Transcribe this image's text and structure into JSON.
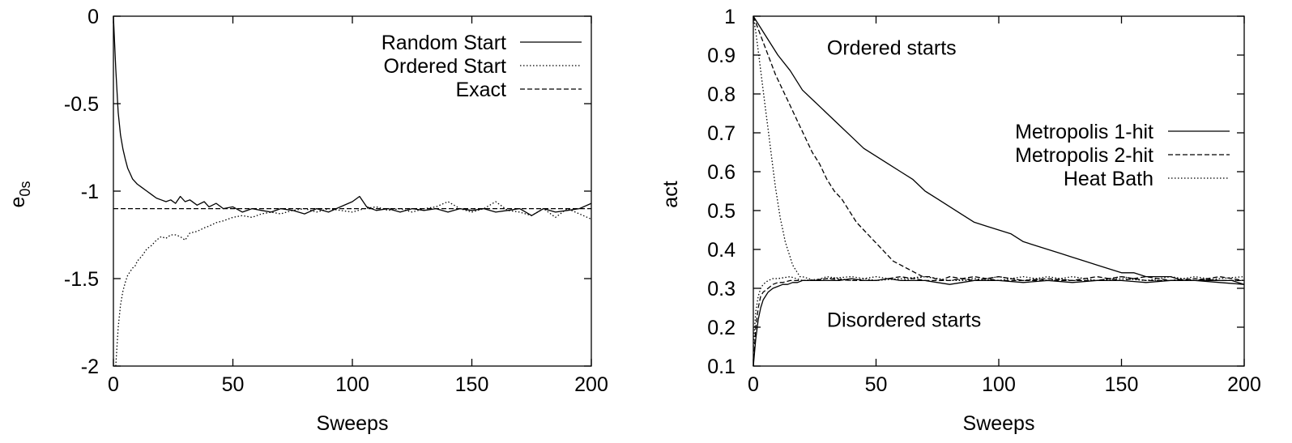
{
  "chart_data": [
    {
      "type": "line",
      "title": "",
      "xlabel": "Sweeps",
      "ylabel": "e",
      "ylabel_sub": "0s",
      "xlim": [
        0,
        200
      ],
      "ylim": [
        -2,
        0
      ],
      "xticks": [
        0,
        50,
        100,
        150,
        200
      ],
      "yticks": [
        -2,
        -1.5,
        -1,
        -0.5,
        0
      ],
      "ytick_labels": [
        "-2",
        "-1.5",
        "-1",
        "-0.5",
        "0"
      ],
      "grid": false,
      "legend": "top-right",
      "annotations": [],
      "series": [
        {
          "name": "Random  Start",
          "style": "solid",
          "x": [
            0,
            1,
            2,
            3,
            4,
            5,
            6,
            7,
            8,
            10,
            12,
            14,
            16,
            18,
            20,
            22,
            24,
            26,
            28,
            30,
            32,
            35,
            38,
            40,
            43,
            46,
            50,
            54,
            58,
            62,
            66,
            70,
            75,
            80,
            85,
            90,
            95,
            100,
            103,
            106,
            110,
            115,
            120,
            125,
            130,
            135,
            140,
            145,
            150,
            155,
            160,
            165,
            170,
            175,
            180,
            185,
            190,
            195,
            200
          ],
          "y": [
            0,
            -0.3,
            -0.55,
            -0.68,
            -0.76,
            -0.82,
            -0.87,
            -0.9,
            -0.93,
            -0.96,
            -0.98,
            -1.0,
            -1.02,
            -1.04,
            -1.05,
            -1.06,
            -1.05,
            -1.07,
            -1.03,
            -1.06,
            -1.05,
            -1.08,
            -1.06,
            -1.09,
            -1.07,
            -1.1,
            -1.09,
            -1.12,
            -1.1,
            -1.11,
            -1.12,
            -1.1,
            -1.11,
            -1.13,
            -1.1,
            -1.12,
            -1.09,
            -1.06,
            -1.03,
            -1.09,
            -1.11,
            -1.1,
            -1.12,
            -1.1,
            -1.11,
            -1.1,
            -1.12,
            -1.1,
            -1.11,
            -1.1,
            -1.12,
            -1.11,
            -1.1,
            -1.14,
            -1.1,
            -1.12,
            -1.11,
            -1.1,
            -1.07
          ]
        },
        {
          "name": "Ordered Start",
          "style": "dotted",
          "x": [
            1,
            2,
            3,
            4,
            5,
            6,
            7,
            8,
            9,
            10,
            12,
            14,
            16,
            18,
            20,
            22,
            24,
            26,
            28,
            30,
            32,
            35,
            38,
            40,
            43,
            46,
            50,
            54,
            58,
            62,
            66,
            70,
            75,
            80,
            85,
            90,
            95,
            100,
            105,
            110,
            115,
            120,
            125,
            130,
            135,
            140,
            145,
            150,
            155,
            160,
            165,
            170,
            175,
            180,
            185,
            190,
            195,
            200
          ],
          "y": [
            -2,
            -1.78,
            -1.65,
            -1.57,
            -1.52,
            -1.48,
            -1.46,
            -1.44,
            -1.43,
            -1.4,
            -1.37,
            -1.33,
            -1.31,
            -1.28,
            -1.26,
            -1.27,
            -1.25,
            -1.25,
            -1.26,
            -1.28,
            -1.24,
            -1.23,
            -1.21,
            -1.2,
            -1.18,
            -1.17,
            -1.15,
            -1.14,
            -1.15,
            -1.13,
            -1.12,
            -1.13,
            -1.11,
            -1.1,
            -1.12,
            -1.1,
            -1.11,
            -1.12,
            -1.1,
            -1.09,
            -1.11,
            -1.1,
            -1.12,
            -1.1,
            -1.09,
            -1.06,
            -1.1,
            -1.12,
            -1.1,
            -1.06,
            -1.11,
            -1.12,
            -1.14,
            -1.1,
            -1.15,
            -1.1,
            -1.13,
            -1.16
          ]
        },
        {
          "name": "Exact",
          "style": "dashed",
          "x": [
            0,
            200
          ],
          "y": [
            -1.1,
            -1.1
          ]
        }
      ]
    },
    {
      "type": "line",
      "title": "",
      "xlabel": "Sweeps",
      "ylabel": "act",
      "ylabel_sub": "",
      "xlim": [
        0,
        200
      ],
      "ylim": [
        0.1,
        1
      ],
      "xticks": [
        0,
        50,
        100,
        150,
        200
      ],
      "yticks": [
        0.1,
        0.2,
        0.3,
        0.4,
        0.5,
        0.6,
        0.7,
        0.8,
        0.9,
        1
      ],
      "ytick_labels": [
        "0.1",
        "0.2",
        "0.3",
        "0.4",
        "0.5",
        "0.6",
        "0.7",
        "0.8",
        "0.9",
        "1"
      ],
      "grid": false,
      "legend": "right",
      "annotations": [
        {
          "text": "Ordered starts",
          "x": 30,
          "y": 0.92
        },
        {
          "text": "Disordered starts",
          "x": 30,
          "y": 0.22
        }
      ],
      "series": [
        {
          "name": "Metropolis 1-hit",
          "style": "solid",
          "x": [
            0,
            5,
            10,
            15,
            20,
            25,
            30,
            35,
            40,
            45,
            50,
            55,
            60,
            65,
            70,
            75,
            80,
            85,
            90,
            95,
            100,
            105,
            110,
            115,
            120,
            125,
            130,
            135,
            140,
            145,
            150,
            155,
            160,
            165,
            170,
            175,
            180,
            185,
            190,
            195,
            200
          ],
          "y": [
            1,
            0.95,
            0.9,
            0.86,
            0.81,
            0.78,
            0.75,
            0.72,
            0.69,
            0.66,
            0.64,
            0.62,
            0.6,
            0.58,
            0.55,
            0.53,
            0.51,
            0.49,
            0.47,
            0.46,
            0.45,
            0.44,
            0.42,
            0.41,
            0.4,
            0.39,
            0.38,
            0.37,
            0.36,
            0.35,
            0.34,
            0.34,
            0.33,
            0.33,
            0.33,
            0.32,
            0.32,
            0.32,
            0.32,
            0.32,
            0.31
          ]
        },
        {
          "name": "Metropolis 2-hit",
          "style": "dashed",
          "x": [
            0,
            3,
            6,
            9,
            12,
            15,
            18,
            21,
            24,
            27,
            30,
            33,
            36,
            39,
            42,
            45,
            48,
            51,
            54,
            57,
            60,
            63,
            66,
            69,
            72,
            76,
            80,
            90,
            100,
            110,
            120,
            130,
            140,
            150,
            160,
            170,
            180,
            190,
            200
          ],
          "y": [
            1,
            0.95,
            0.9,
            0.85,
            0.81,
            0.77,
            0.73,
            0.69,
            0.65,
            0.62,
            0.58,
            0.55,
            0.53,
            0.5,
            0.47,
            0.45,
            0.43,
            0.41,
            0.39,
            0.37,
            0.36,
            0.35,
            0.34,
            0.33,
            0.33,
            0.32,
            0.33,
            0.32,
            0.33,
            0.32,
            0.32,
            0.32,
            0.33,
            0.32,
            0.33,
            0.32,
            0.32,
            0.33,
            0.32
          ]
        },
        {
          "name": "Heat Bath",
          "style": "dotted",
          "x": [
            0,
            1,
            2,
            3,
            4,
            5,
            6,
            7,
            8,
            9,
            10,
            11,
            12,
            13,
            14,
            15,
            16,
            17,
            18,
            19,
            20,
            25,
            30,
            40,
            50,
            60,
            70,
            80,
            90,
            100,
            110,
            120,
            130,
            140,
            150,
            160,
            170,
            180,
            190,
            200
          ],
          "y": [
            1,
            0.96,
            0.91,
            0.86,
            0.81,
            0.76,
            0.71,
            0.66,
            0.61,
            0.56,
            0.52,
            0.48,
            0.45,
            0.42,
            0.4,
            0.38,
            0.36,
            0.35,
            0.34,
            0.33,
            0.33,
            0.32,
            0.33,
            0.32,
            0.33,
            0.32,
            0.33,
            0.32,
            0.32,
            0.33,
            0.32,
            0.33,
            0.32,
            0.32,
            0.33,
            0.32,
            0.32,
            0.33,
            0.32,
            0.32
          ]
        },
        {
          "name": "",
          "style": "solid",
          "x": [
            0,
            1,
            2,
            3,
            4,
            5,
            6,
            8,
            10,
            12,
            14,
            16,
            18,
            20,
            25,
            30,
            35,
            40,
            45,
            50,
            55,
            60,
            65,
            70,
            75,
            80,
            85,
            90,
            100,
            110,
            120,
            130,
            140,
            150,
            160,
            170,
            180,
            190,
            200
          ],
          "y": [
            0.1,
            0.17,
            0.22,
            0.25,
            0.27,
            0.28,
            0.29,
            0.3,
            0.305,
            0.31,
            0.31,
            0.315,
            0.315,
            0.32,
            0.32,
            0.32,
            0.32,
            0.325,
            0.32,
            0.32,
            0.325,
            0.32,
            0.32,
            0.32,
            0.315,
            0.31,
            0.315,
            0.32,
            0.32,
            0.315,
            0.32,
            0.315,
            0.32,
            0.32,
            0.315,
            0.32,
            0.32,
            0.315,
            0.31
          ]
        },
        {
          "name": "",
          "style": "dashed",
          "x": [
            0,
            1,
            2,
            3,
            4,
            6,
            8,
            10,
            12,
            15,
            20,
            25,
            30,
            40,
            50,
            60,
            70,
            80,
            90,
            100,
            110,
            120,
            130,
            140,
            150,
            160,
            170,
            180,
            190,
            200
          ],
          "y": [
            0.1,
            0.2,
            0.25,
            0.28,
            0.29,
            0.3,
            0.31,
            0.315,
            0.315,
            0.32,
            0.32,
            0.32,
            0.325,
            0.32,
            0.32,
            0.33,
            0.32,
            0.32,
            0.33,
            0.32,
            0.32,
            0.325,
            0.32,
            0.32,
            0.33,
            0.32,
            0.32,
            0.325,
            0.32,
            0.32
          ]
        },
        {
          "name": "",
          "style": "dotted",
          "x": [
            0,
            1,
            2,
            3,
            4,
            5,
            6,
            8,
            10,
            15,
            20,
            30,
            40,
            50,
            60,
            70,
            80,
            90,
            100,
            110,
            120,
            130,
            140,
            150,
            160,
            170,
            180,
            190,
            200
          ],
          "y": [
            0.15,
            0.24,
            0.28,
            0.3,
            0.31,
            0.315,
            0.32,
            0.325,
            0.325,
            0.33,
            0.32,
            0.325,
            0.33,
            0.32,
            0.325,
            0.33,
            0.32,
            0.325,
            0.32,
            0.33,
            0.32,
            0.33,
            0.32,
            0.325,
            0.32,
            0.33,
            0.32,
            0.325,
            0.33
          ]
        }
      ]
    }
  ]
}
